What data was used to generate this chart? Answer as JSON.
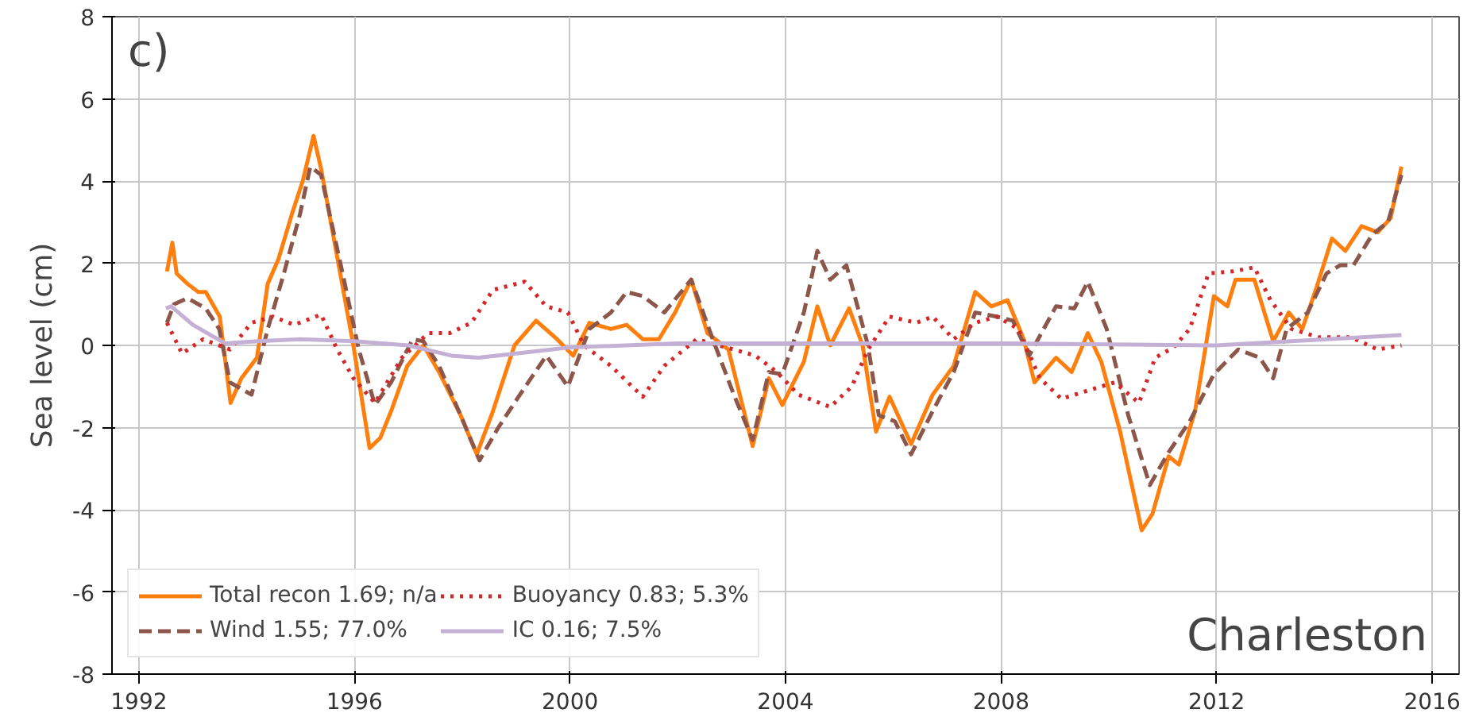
{
  "chart_data": {
    "type": "line",
    "ylabel": "Sea level (cm)",
    "xlim": [
      1991.5,
      2016.5
    ],
    "xticks": [
      1992,
      1996,
      2000,
      2004,
      2008,
      2012,
      2016
    ],
    "ylim": [
      -8,
      8
    ],
    "yticks": [
      -8,
      -6,
      -4,
      -2,
      0,
      2,
      4,
      6,
      8
    ],
    "grid": true,
    "legend": "bottom left",
    "annotations": [
      "c)",
      "Charleston"
    ],
    "series": [
      {
        "name": "Total recon 1.69; n/a",
        "color": "#ff7f0e",
        "line_style": "solid",
        "x": [
          1992.52,
          1992.62,
          1992.7,
          1992.9,
          1993.1,
          1993.24,
          1993.5,
          1993.7,
          1993.9,
          1994.19,
          1994.39,
          1994.59,
          1994.84,
          1995.04,
          1995.24,
          1995.38,
          1995.68,
          1995.98,
          1996.28,
          1996.48,
          1996.68,
          1996.98,
          1997.28,
          1997.57,
          1997.97,
          1998.27,
          1998.57,
          1998.97,
          1999.37,
          1999.76,
          2000.06,
          2000.36,
          2000.76,
          2001.05,
          2001.35,
          2001.65,
          2001.95,
          2002.25,
          2002.55,
          2002.94,
          2003.39,
          2003.69,
          2003.94,
          2004.34,
          2004.59,
          2004.83,
          2005.18,
          2005.43,
          2005.68,
          2005.93,
          2006.33,
          2006.73,
          2007.12,
          2007.52,
          2007.82,
          2008.12,
          2008.42,
          2008.62,
          2009.02,
          2009.31,
          2009.61,
          2009.86,
          2010.21,
          2010.61,
          2010.81,
          2011.11,
          2011.3,
          2011.6,
          2011.95,
          2012.2,
          2012.35,
          2012.7,
          2013.05,
          2013.34,
          2013.59,
          2013.84,
          2014.14,
          2014.39,
          2014.69,
          2014.99,
          2015.23,
          2015.43
        ],
        "values": [
          1.8,
          2.5,
          1.75,
          1.5,
          1.3,
          1.3,
          0.7,
          -1.4,
          -0.8,
          -0.3,
          1.5,
          2.1,
          3.2,
          4.0,
          5.1,
          4.3,
          2.15,
          0.0,
          -2.5,
          -2.25,
          -1.6,
          -0.5,
          0.0,
          -0.65,
          -1.7,
          -2.65,
          -1.6,
          0.0,
          0.6,
          0.15,
          -0.25,
          0.55,
          0.4,
          0.5,
          0.15,
          0.15,
          0.8,
          1.6,
          0.3,
          -0.1,
          -2.45,
          -0.8,
          -1.45,
          -0.4,
          0.95,
          0.0,
          0.9,
          0.0,
          -2.1,
          -1.25,
          -2.4,
          -1.2,
          -0.5,
          1.3,
          0.95,
          1.1,
          0.15,
          -0.9,
          -0.3,
          -0.65,
          0.3,
          -0.4,
          -2.1,
          -4.5,
          -4.1,
          -2.7,
          -2.9,
          -1.6,
          1.2,
          0.95,
          1.6,
          1.6,
          0.1,
          0.8,
          0.4,
          1.35,
          2.6,
          2.3,
          2.9,
          2.75,
          3.1,
          4.35
        ]
      },
      {
        "name": "Wind 1.55; 77.0%",
        "color": "#8c564b",
        "line_style": "dashed",
        "x": [
          1992.52,
          1992.65,
          1992.9,
          1993.24,
          1993.49,
          1993.69,
          1994.09,
          1994.39,
          1994.69,
          1994.99,
          1995.18,
          1995.38,
          1995.78,
          1996.08,
          1996.38,
          1996.68,
          1997.08,
          1997.28,
          1997.57,
          1997.97,
          1998.32,
          1998.67,
          1999.07,
          1999.56,
          1999.96,
          2000.36,
          2000.76,
          2001.05,
          2001.35,
          2001.75,
          2002.25,
          2002.65,
          2003.04,
          2003.39,
          2003.69,
          2003.94,
          2004.34,
          2004.59,
          2004.83,
          2005.13,
          2005.53,
          2005.73,
          2006.03,
          2006.33,
          2006.73,
          2007.12,
          2007.52,
          2007.92,
          2008.22,
          2008.52,
          2009.02,
          2009.36,
          2009.61,
          2009.96,
          2010.36,
          2010.76,
          2011.11,
          2011.5,
          2011.95,
          2012.4,
          2012.8,
          2013.05,
          2013.3,
          2013.69,
          2014.04,
          2014.29,
          2014.54,
          2014.89,
          2015.18,
          2015.43
        ],
        "values": [
          0.55,
          1.0,
          1.15,
          0.9,
          0.4,
          -0.9,
          -1.2,
          0.4,
          1.75,
          3.2,
          4.35,
          4.15,
          1.75,
          -0.1,
          -1.45,
          -0.9,
          0.15,
          0.1,
          -0.5,
          -1.7,
          -2.8,
          -2.0,
          -1.2,
          -0.25,
          -1.0,
          0.4,
          0.8,
          1.3,
          1.2,
          0.8,
          1.6,
          0.15,
          -1.2,
          -2.3,
          -0.65,
          -0.7,
          0.8,
          2.3,
          1.6,
          1.95,
          0.0,
          -1.7,
          -1.85,
          -2.65,
          -1.6,
          -0.65,
          0.8,
          0.7,
          0.6,
          -0.25,
          0.95,
          0.9,
          1.55,
          0.4,
          -1.7,
          -3.4,
          -2.6,
          -1.85,
          -0.7,
          -0.1,
          -0.3,
          -0.8,
          0.4,
          0.8,
          1.75,
          1.95,
          1.95,
          2.7,
          3.0,
          4.15
        ]
      },
      {
        "name": "Buoyancy 0.83; 5.3%",
        "color": "#d62728",
        "line_style": "dotted",
        "x": [
          1992.52,
          1992.8,
          1993.19,
          1993.69,
          1994.09,
          1994.49,
          1994.88,
          1995.38,
          1995.68,
          1995.98,
          1996.38,
          1996.88,
          1997.37,
          1997.77,
          1998.17,
          1998.57,
          1999.16,
          1999.56,
          1999.96,
          2000.26,
          2000.76,
          2001.35,
          2001.75,
          2002.35,
          2003.04,
          2003.44,
          2003.84,
          2004.24,
          2004.83,
          2005.23,
          2005.53,
          2005.93,
          2006.43,
          2006.73,
          2007.12,
          2007.52,
          2007.92,
          2008.32,
          2008.72,
          2009.12,
          2009.61,
          2010.11,
          2010.56,
          2010.86,
          2011.2,
          2011.5,
          2011.85,
          2012.3,
          2012.7,
          2013.0,
          2013.39,
          2013.89,
          2014.49,
          2014.99,
          2015.43
        ],
        "values": [
          0.55,
          -0.2,
          0.15,
          -0.1,
          0.55,
          0.7,
          0.5,
          0.75,
          -0.1,
          -0.8,
          -1.4,
          -0.3,
          0.3,
          0.3,
          0.55,
          1.35,
          1.55,
          0.95,
          0.8,
          0.0,
          -0.5,
          -1.25,
          -0.5,
          0.15,
          -0.1,
          -0.25,
          -0.65,
          -1.2,
          -1.5,
          -1.0,
          -0.1,
          0.7,
          0.55,
          0.7,
          0.15,
          0.55,
          0.7,
          0.4,
          -0.8,
          -1.3,
          -1.1,
          -0.9,
          -1.4,
          -0.3,
          -0.05,
          0.4,
          1.75,
          1.8,
          1.9,
          1.1,
          0.4,
          0.2,
          0.2,
          -0.1,
          0.0
        ]
      },
      {
        "name": "IC 0.16; 7.5%",
        "color": "#c5b0d5",
        "line_style": "solid",
        "x": [
          1992.5,
          1992.6,
          1993.0,
          1993.6,
          1994.2,
          1995.0,
          1996.0,
          1997.0,
          1997.8,
          1998.3,
          1999.0,
          2000.0,
          2002.0,
          2004.0,
          2008.0,
          2012.0,
          2015.43
        ],
        "values": [
          0.9,
          0.95,
          0.5,
          0.05,
          0.1,
          0.15,
          0.1,
          0.0,
          -0.25,
          -0.3,
          -0.2,
          -0.05,
          0.05,
          0.05,
          0.05,
          0.0,
          0.25
        ]
      }
    ]
  }
}
